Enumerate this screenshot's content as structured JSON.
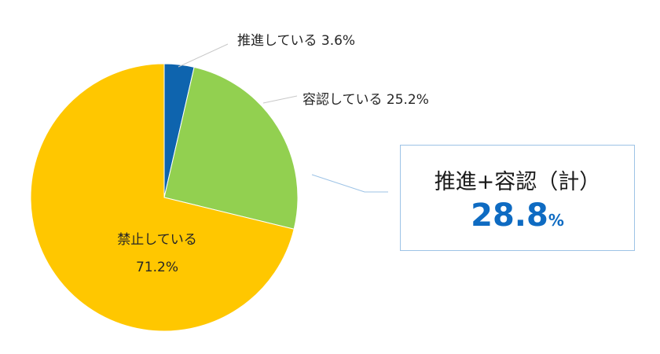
{
  "chart_data": {
    "type": "pie",
    "title": "",
    "categories": [
      "推進している",
      "容認している",
      "禁止している"
    ],
    "values": [
      3.6,
      25.2,
      71.2
    ],
    "unit": "%",
    "colors": [
      "#0e64ae",
      "#92d050",
      "#ffc700"
    ],
    "labels": [
      {
        "name": "推進している",
        "text": "推進している 3.6%",
        "position": "outside"
      },
      {
        "name": "容認している",
        "text": "容認している 25.2%",
        "position": "outside"
      },
      {
        "name": "禁止している",
        "text": "71.2%",
        "position": "inside"
      }
    ],
    "start_angle_deg": 0,
    "direction": "clockwise",
    "legend": "none",
    "annotation": {
      "title": "推進+容認（計）",
      "value": "28.8",
      "unit": "%"
    }
  },
  "labels": {
    "promote": "推進している 3.6%",
    "tolerate": "容認している 25.2%",
    "prohibit_name": "禁止している",
    "prohibit_value": "71.2%"
  },
  "summary": {
    "title": "推進+容認（計）",
    "value": "28.8",
    "unit": "%",
    "value_color": "#0e6bc2"
  }
}
